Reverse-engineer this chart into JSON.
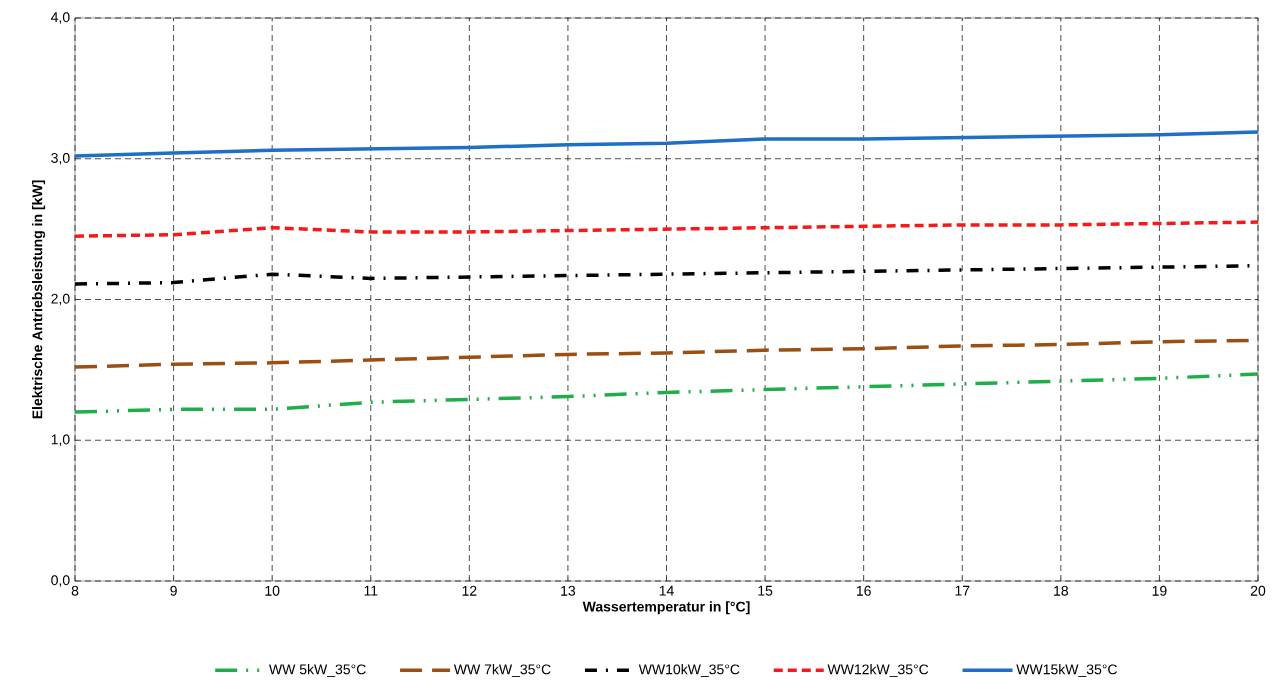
{
  "chart_data": {
    "type": "line",
    "xlabel": "Wassertemperatur in [°C]",
    "ylabel": "Elektrische Antriebsleistung  in [kW]",
    "x": [
      8,
      9,
      10,
      11,
      12,
      13,
      14,
      15,
      16,
      17,
      18,
      19,
      20
    ],
    "xlim": [
      8,
      20
    ],
    "xticks": [
      8,
      9,
      10,
      11,
      12,
      13,
      14,
      15,
      16,
      17,
      18,
      19,
      20
    ],
    "ylim": [
      0,
      4
    ],
    "yticks": [
      {
        "value": 0,
        "label": "0,0"
      },
      {
        "value": 1,
        "label": "1,0"
      },
      {
        "value": 2,
        "label": "2,0"
      },
      {
        "value": 3,
        "label": "3,0"
      },
      {
        "value": 4,
        "label": "4,0"
      }
    ],
    "grid": true,
    "legend": "bottom",
    "series": [
      {
        "name": "WW 5kW_35°C",
        "color": "#1fae4a",
        "line_style": "dashdotdot",
        "values": [
          1.2,
          1.22,
          1.22,
          1.27,
          1.29,
          1.31,
          1.34,
          1.36,
          1.38,
          1.4,
          1.42,
          1.44,
          1.47
        ]
      },
      {
        "name": "WW 7kW_35°C",
        "color": "#9c4f12",
        "line_style": "longdash",
        "values": [
          1.52,
          1.54,
          1.55,
          1.57,
          1.59,
          1.61,
          1.62,
          1.64,
          1.65,
          1.67,
          1.68,
          1.7,
          1.71
        ]
      },
      {
        "name": "WW10kW_35°C",
        "color": "#000000",
        "line_style": "dashdot",
        "values": [
          2.11,
          2.12,
          2.18,
          2.15,
          2.16,
          2.17,
          2.18,
          2.19,
          2.2,
          2.21,
          2.22,
          2.23,
          2.24
        ]
      },
      {
        "name": "WW12kW_35°C",
        "color": "#f41a1a",
        "line_style": "dashed",
        "values": [
          2.45,
          2.46,
          2.51,
          2.48,
          2.48,
          2.49,
          2.5,
          2.51,
          2.52,
          2.53,
          2.53,
          2.54,
          2.55
        ]
      },
      {
        "name": "WW15kW_35°C",
        "color": "#1f6fc5",
        "line_style": "solid",
        "values": [
          3.02,
          3.04,
          3.06,
          3.07,
          3.08,
          3.1,
          3.11,
          3.14,
          3.14,
          3.15,
          3.16,
          3.17,
          3.19
        ]
      }
    ]
  }
}
